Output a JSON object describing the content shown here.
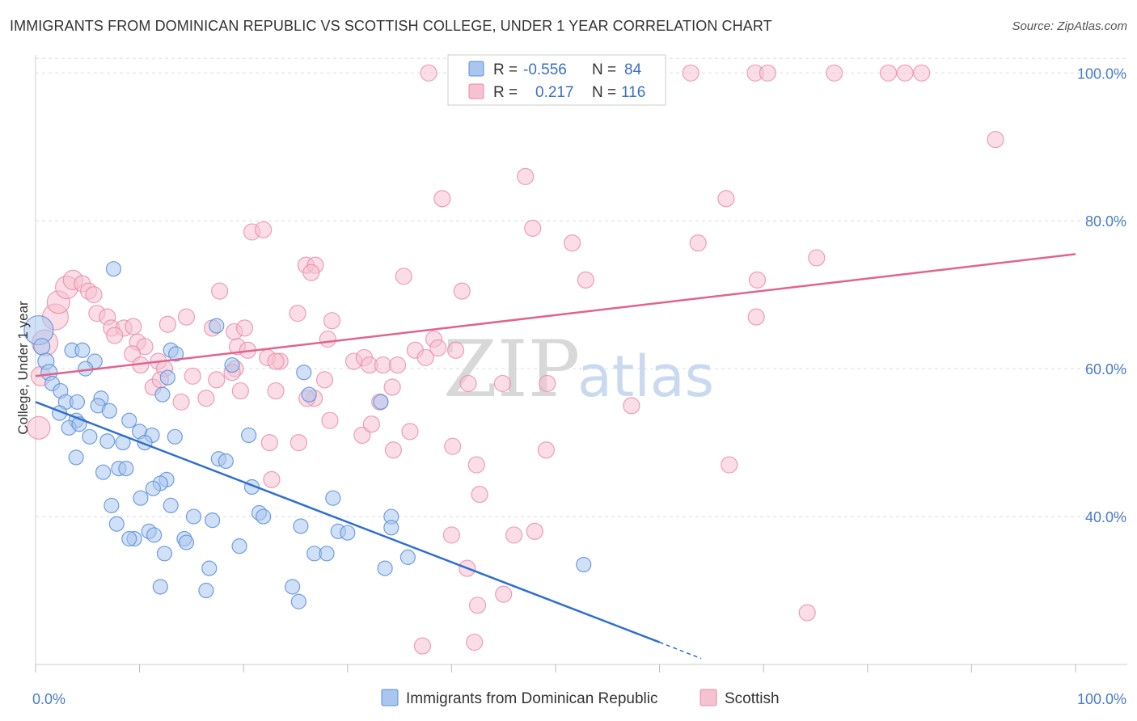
{
  "header": {
    "title": "IMMIGRANTS FROM DOMINICAN REPUBLIC VS SCOTTISH COLLEGE, UNDER 1 YEAR CORRELATION CHART",
    "source": "Source: ZipAtlas.com"
  },
  "watermark": {
    "zip": "ZIP",
    "atlas": "atlas"
  },
  "colors": {
    "blue": "#5b8fd8",
    "blue_fill": "#a9c6ee",
    "blue_line": "#2f6fcf",
    "pink": "#e98aa8",
    "pink_fill": "#f6c1d1",
    "pink_line": "#e0648f",
    "tick": "#4a7cc9",
    "grid": "#dddddd"
  },
  "legend": {
    "series": [
      {
        "r_label": "R =",
        "r_value": "-0.556",
        "n_label": "N =",
        "n_value": "84"
      },
      {
        "r_label": "R =",
        "r_value": "0.217",
        "n_label": "N =",
        "n_value": "116"
      }
    ]
  },
  "chart_data": {
    "type": "scatter",
    "xlabel": "",
    "ylabel": "College, Under 1 year",
    "xlim": [
      0,
      100
    ],
    "ylim": [
      20,
      102
    ],
    "y_ticks": [
      {
        "value": 40,
        "label": "40.0%"
      },
      {
        "value": 60,
        "label": "60.0%"
      },
      {
        "value": 80,
        "label": "80.0%"
      },
      {
        "value": 100,
        "label": "100.0%"
      }
    ],
    "x_tick_labels": [
      {
        "value": 0,
        "label": "0.0%"
      },
      {
        "value": 100,
        "label": "100.0%"
      }
    ],
    "grid": true,
    "legend_position": "top-center",
    "series": [
      {
        "name": "Immigrants from Dominican Republic",
        "color": "#5b8fd8",
        "trend": {
          "x0": 0,
          "y0": 55.5,
          "x1": 60,
          "y1": 23.0,
          "dashed_to_x": 64,
          "dashed_to_y": 20.8
        },
        "points": [
          [
            0.3,
            65.2,
            18
          ],
          [
            0.6,
            63.0,
            10
          ],
          [
            1.0,
            61.0,
            10
          ],
          [
            1.3,
            59.5,
            10
          ],
          [
            1.6,
            58.0,
            9
          ],
          [
            2.4,
            57.0,
            9
          ],
          [
            3.5,
            62.5,
            9
          ],
          [
            4.5,
            62.5,
            9
          ],
          [
            5.7,
            61.0,
            9
          ],
          [
            4.8,
            60.0,
            9
          ],
          [
            2.9,
            55.5,
            9
          ],
          [
            4.0,
            55.5,
            9
          ],
          [
            6.3,
            56.0,
            9
          ],
          [
            6.0,
            55.0,
            9
          ],
          [
            7.1,
            54.3,
            9
          ],
          [
            2.3,
            54.0,
            9
          ],
          [
            3.9,
            53.0,
            9
          ],
          [
            3.2,
            52.0,
            9
          ],
          [
            4.2,
            52.5,
            9
          ],
          [
            9.0,
            53.0,
            9
          ],
          [
            10.0,
            51.5,
            9
          ],
          [
            11.2,
            51.0,
            9
          ],
          [
            13.4,
            50.8,
            9
          ],
          [
            5.2,
            50.8,
            9
          ],
          [
            6.9,
            50.2,
            9
          ],
          [
            8.4,
            50.0,
            9
          ],
          [
            10.5,
            50.0,
            9
          ],
          [
            3.9,
            48.0,
            9
          ],
          [
            6.5,
            46.0,
            9
          ],
          [
            8.0,
            46.5,
            9
          ],
          [
            8.7,
            46.5,
            9
          ],
          [
            12.6,
            45.0,
            9
          ],
          [
            12.0,
            44.5,
            9
          ],
          [
            11.3,
            43.8,
            9
          ],
          [
            10.1,
            42.5,
            9
          ],
          [
            7.3,
            41.5,
            9
          ],
          [
            13.0,
            41.5,
            9
          ],
          [
            15.2,
            40.0,
            9
          ],
          [
            17.0,
            39.5,
            9
          ],
          [
            7.8,
            39.0,
            9
          ],
          [
            10.9,
            38.0,
            9
          ],
          [
            11.4,
            37.5,
            9
          ],
          [
            9.5,
            37.0,
            9
          ],
          [
            9.0,
            37.0,
            9
          ],
          [
            14.3,
            37.0,
            9
          ],
          [
            14.5,
            36.5,
            9
          ],
          [
            19.6,
            36.0,
            9
          ],
          [
            12.4,
            35.0,
            9
          ],
          [
            16.7,
            33.0,
            9
          ],
          [
            16.4,
            30.0,
            9
          ],
          [
            12.0,
            30.5,
            9
          ],
          [
            7.5,
            73.5,
            9
          ],
          [
            17.4,
            65.8,
            9
          ],
          [
            13.0,
            62.5,
            9
          ],
          [
            12.7,
            58.8,
            9
          ],
          [
            12.2,
            56.5,
            9
          ],
          [
            18.9,
            60.5,
            9
          ],
          [
            25.8,
            59.5,
            9
          ],
          [
            26.3,
            56.5,
            9
          ],
          [
            20.5,
            51.0,
            9
          ],
          [
            17.6,
            47.8,
            9
          ],
          [
            18.3,
            47.5,
            9
          ],
          [
            20.8,
            44.0,
            9
          ],
          [
            21.5,
            40.5,
            9
          ],
          [
            21.9,
            40.0,
            9
          ],
          [
            25.5,
            38.7,
            9
          ],
          [
            28.6,
            42.5,
            9
          ],
          [
            29.1,
            38.0,
            9
          ],
          [
            30.0,
            37.8,
            9
          ],
          [
            34.2,
            40.0,
            9
          ],
          [
            34.2,
            38.5,
            9
          ],
          [
            26.8,
            35.0,
            9
          ],
          [
            28.0,
            35.0,
            9
          ],
          [
            24.7,
            30.5,
            9
          ],
          [
            25.3,
            28.5,
            9
          ],
          [
            35.8,
            34.5,
            9
          ],
          [
            33.6,
            33.0,
            9
          ],
          [
            52.7,
            33.5,
            9
          ],
          [
            33.2,
            55.5,
            9
          ],
          [
            13.5,
            62.0,
            9
          ]
        ]
      },
      {
        "name": "Scottish",
        "color": "#e98aa8",
        "trend": {
          "x0": 0,
          "y0": 59.0,
          "x1": 100,
          "y1": 75.5
        },
        "points": [
          [
            0.3,
            52.0,
            14
          ],
          [
            0.5,
            59.0,
            12
          ],
          [
            0.9,
            63.5,
            16
          ],
          [
            1.9,
            67.0,
            16
          ],
          [
            2.2,
            69.0,
            14
          ],
          [
            3.0,
            71.0,
            14
          ],
          [
            3.6,
            72.0,
            12
          ],
          [
            4.5,
            71.5,
            10
          ],
          [
            5.1,
            70.5,
            10
          ],
          [
            5.6,
            70.0,
            10
          ],
          [
            5.9,
            67.5,
            10
          ],
          [
            6.9,
            67.0,
            10
          ],
          [
            7.3,
            65.5,
            10
          ],
          [
            8.5,
            65.5,
            10
          ],
          [
            9.4,
            65.7,
            10
          ],
          [
            7.6,
            64.5,
            10
          ],
          [
            9.8,
            63.6,
            10
          ],
          [
            10.5,
            63.0,
            10
          ],
          [
            9.3,
            62.0,
            10
          ],
          [
            11.8,
            61.0,
            10
          ],
          [
            10.1,
            60.5,
            10
          ],
          [
            12.4,
            60.0,
            10
          ],
          [
            11.3,
            57.5,
            10
          ],
          [
            12.0,
            58.5,
            10
          ],
          [
            14.0,
            55.5,
            10
          ],
          [
            15.1,
            59.0,
            10
          ],
          [
            16.4,
            56.0,
            10
          ],
          [
            17.4,
            58.5,
            10
          ],
          [
            14.5,
            67.0,
            10
          ],
          [
            12.7,
            66.0,
            10
          ],
          [
            17.0,
            65.5,
            10
          ],
          [
            17.7,
            70.5,
            10
          ],
          [
            19.1,
            65.0,
            10
          ],
          [
            20.1,
            65.5,
            10
          ],
          [
            19.4,
            63.0,
            10
          ],
          [
            20.4,
            62.5,
            10
          ],
          [
            22.3,
            61.5,
            10
          ],
          [
            23.5,
            61.0,
            10
          ],
          [
            19.2,
            60.0,
            10
          ],
          [
            18.9,
            59.5,
            10
          ],
          [
            19.7,
            57.0,
            10
          ],
          [
            23.1,
            57.0,
            10
          ],
          [
            20.8,
            78.5,
            10
          ],
          [
            21.9,
            78.8,
            10
          ],
          [
            26.0,
            74.0,
            10
          ],
          [
            26.9,
            74.0,
            10
          ],
          [
            26.5,
            73.0,
            10
          ],
          [
            25.2,
            67.5,
            10
          ],
          [
            28.5,
            66.5,
            10
          ],
          [
            28.1,
            64.0,
            10
          ],
          [
            27.8,
            58.5,
            10
          ],
          [
            26.8,
            56.0,
            10
          ],
          [
            28.3,
            53.0,
            10
          ],
          [
            25.3,
            50.0,
            10
          ],
          [
            22.7,
            45.0,
            10
          ],
          [
            30.6,
            61.0,
            10
          ],
          [
            31.6,
            61.5,
            10
          ],
          [
            32.1,
            60.5,
            10
          ],
          [
            33.4,
            60.5,
            10
          ],
          [
            34.8,
            60.5,
            10
          ],
          [
            31.4,
            51.0,
            10
          ],
          [
            32.3,
            52.5,
            10
          ],
          [
            33.1,
            55.5,
            10
          ],
          [
            34.4,
            49.0,
            10
          ],
          [
            34.3,
            57.5,
            10
          ],
          [
            36.0,
            51.5,
            10
          ],
          [
            35.4,
            72.5,
            10
          ],
          [
            36.5,
            62.5,
            10
          ],
          [
            37.5,
            61.5,
            10
          ],
          [
            38.3,
            64.0,
            10
          ],
          [
            38.7,
            62.8,
            10
          ],
          [
            40.4,
            62.5,
            10
          ],
          [
            41.6,
            58.0,
            10
          ],
          [
            40.1,
            49.5,
            10
          ],
          [
            42.4,
            47.0,
            10
          ],
          [
            42.7,
            43.0,
            10
          ],
          [
            41.0,
            70.5,
            10
          ],
          [
            39.1,
            83.0,
            10
          ],
          [
            37.8,
            100.0,
            10
          ],
          [
            44.9,
            58.0,
            10
          ],
          [
            49.1,
            49.0,
            10
          ],
          [
            49.2,
            58.0,
            10
          ],
          [
            47.1,
            86.0,
            10
          ],
          [
            47.8,
            79.0,
            10
          ],
          [
            51.6,
            77.0,
            10
          ],
          [
            52.9,
            72.0,
            10
          ],
          [
            52.5,
            100.0,
            10
          ],
          [
            59.0,
            100.0,
            10
          ],
          [
            63.0,
            100.0,
            10
          ],
          [
            63.7,
            77.0,
            10
          ],
          [
            57.3,
            55.0,
            10
          ],
          [
            55.1,
            100.0,
            10
          ],
          [
            69.2,
            100.0,
            10
          ],
          [
            69.4,
            72.0,
            10
          ],
          [
            70.4,
            100.0,
            10
          ],
          [
            75.1,
            75.0,
            10
          ],
          [
            82.0,
            100.0,
            10
          ],
          [
            83.6,
            100.0,
            10
          ],
          [
            85.2,
            100.0,
            10
          ],
          [
            92.3,
            91.0,
            10
          ],
          [
            76.8,
            100.0,
            10
          ],
          [
            66.4,
            83.0,
            10
          ],
          [
            69.3,
            67.0,
            10
          ],
          [
            22.5,
            50.0,
            10
          ],
          [
            40.0,
            37.5,
            10
          ],
          [
            46.0,
            37.5,
            10
          ],
          [
            48.0,
            38.0,
            10
          ],
          [
            41.5,
            33.0,
            10
          ],
          [
            45.0,
            29.5,
            10
          ],
          [
            42.5,
            28.0,
            10
          ],
          [
            37.2,
            22.5,
            10
          ],
          [
            42.2,
            23.0,
            10
          ],
          [
            74.2,
            27.0,
            10
          ],
          [
            66.7,
            47.0,
            10
          ],
          [
            23.1,
            61.0,
            10
          ],
          [
            26.1,
            56.0,
            10
          ]
        ]
      }
    ]
  },
  "bottom_legend": [
    {
      "label": "Immigrants from Dominican Republic"
    },
    {
      "label": "Scottish"
    }
  ]
}
